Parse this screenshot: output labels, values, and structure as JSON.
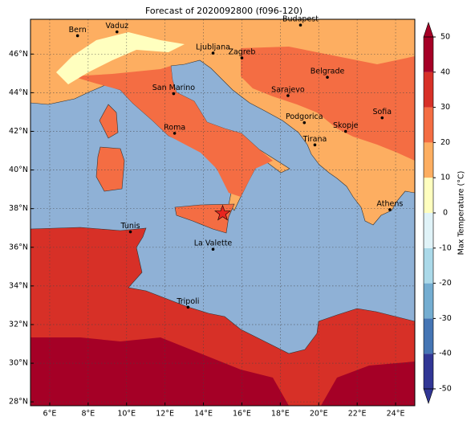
{
  "map": {
    "title": "Forecast of 2020092800 (f096-120)",
    "lon_lim": [
      5,
      25
    ],
    "lat_lim": [
      27.8,
      47.8
    ],
    "lon_ticks": [
      {
        "value": 6,
        "label": "6°E"
      },
      {
        "value": 8,
        "label": "8°E"
      },
      {
        "value": 10,
        "label": "10°E"
      },
      {
        "value": 12,
        "label": "12°E"
      },
      {
        "value": 14,
        "label": "14°E"
      },
      {
        "value": 16,
        "label": "16°E"
      },
      {
        "value": 18,
        "label": "18°E"
      },
      {
        "value": 20,
        "label": "20°E"
      },
      {
        "value": 22,
        "label": "22°E"
      },
      {
        "value": 24,
        "label": "24°E"
      }
    ],
    "lat_ticks": [
      {
        "value": 28,
        "label": "28°N"
      },
      {
        "value": 30,
        "label": "30°N"
      },
      {
        "value": 32,
        "label": "32°N"
      },
      {
        "value": 34,
        "label": "34°N"
      },
      {
        "value": 36,
        "label": "36°N"
      },
      {
        "value": 38,
        "label": "38°N"
      },
      {
        "value": 40,
        "label": "40°N"
      },
      {
        "value": 42,
        "label": "42°N"
      },
      {
        "value": 44,
        "label": "44°N"
      },
      {
        "value": 46,
        "label": "46°N"
      }
    ],
    "grid": true,
    "cities": [
      {
        "name": "Bern",
        "lon": 7.45,
        "lat": 46.95
      },
      {
        "name": "Vaduz",
        "lon": 9.5,
        "lat": 47.15
      },
      {
        "name": "Budapest",
        "lon": 19.05,
        "lat": 47.5
      },
      {
        "name": "Ljubljana",
        "lon": 14.5,
        "lat": 46.05
      },
      {
        "name": "Zagreb",
        "lon": 16.0,
        "lat": 45.8
      },
      {
        "name": "Belgrade",
        "lon": 20.45,
        "lat": 44.8
      },
      {
        "name": "San Marino",
        "lon": 12.45,
        "lat": 43.95
      },
      {
        "name": "Sarajevo",
        "lon": 18.4,
        "lat": 43.85
      },
      {
        "name": "Sofia",
        "lon": 23.3,
        "lat": 42.7
      },
      {
        "name": "Podgorica",
        "lon": 19.25,
        "lat": 42.45
      },
      {
        "name": "Skopje",
        "lon": 21.4,
        "lat": 42.0
      },
      {
        "name": "Roma",
        "lon": 12.5,
        "lat": 41.9
      },
      {
        "name": "Tirana",
        "lon": 19.8,
        "lat": 41.3
      },
      {
        "name": "Athens",
        "lon": 23.7,
        "lat": 37.95
      },
      {
        "name": "Tunis",
        "lon": 10.2,
        "lat": 36.8
      },
      {
        "name": "La Valette",
        "lon": 14.5,
        "lat": 35.9
      },
      {
        "name": "Tripoli",
        "lon": 13.2,
        "lat": 32.9
      }
    ],
    "marker": {
      "lon": 15.0,
      "lat": 37.75,
      "color": "#e8251f"
    }
  },
  "colorbar": {
    "label": "Max Temperature (°C)",
    "clim": [
      -50,
      50
    ],
    "ticks": [
      -50,
      -40,
      -30,
      -20,
      -10,
      0,
      10,
      20,
      30,
      40,
      50
    ],
    "colors": [
      "#313695",
      "#4575b4",
      "#74add1",
      "#abd9e9",
      "#e0f3f8",
      "#ffffbf",
      "#fdae61",
      "#f46d43",
      "#d73027",
      "#a50026"
    ]
  }
}
